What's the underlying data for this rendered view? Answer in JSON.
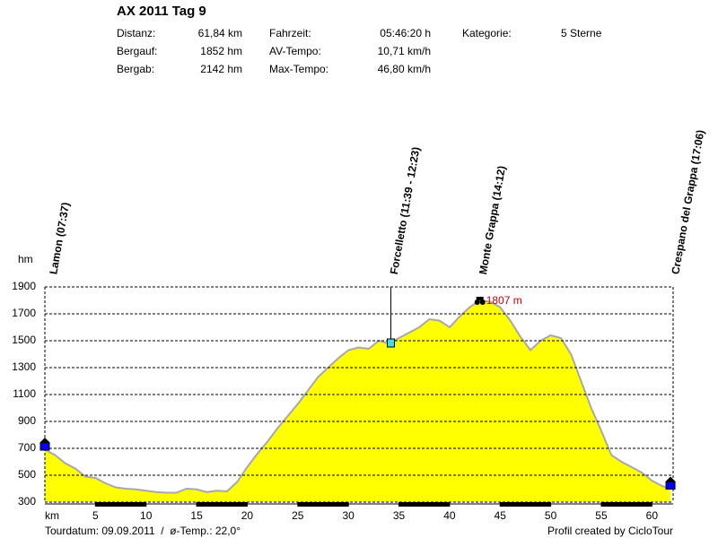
{
  "header": {
    "title": "AX 2011 Tag 9",
    "stats": [
      [
        {
          "label": "Distanz:",
          "value": "61,84 km"
        },
        {
          "label": "Fahrzeit:",
          "value": "05:46:20 h"
        },
        {
          "label": "Kategorie:",
          "value": "5 Sterne"
        }
      ],
      [
        {
          "label": "Bergauf:",
          "value": "1852 hm"
        },
        {
          "label": "AV-Tempo:",
          "value": "10,71 km/h"
        }
      ],
      [
        {
          "label": "Bergab:",
          "value": "2142 hm"
        },
        {
          "label": "Max-Tempo:",
          "value": "46,80 km/h"
        }
      ]
    ]
  },
  "chart_data": {
    "type": "area",
    "x_label": "km",
    "y_label": "hm",
    "color": "#ffff00",
    "line_color": "#a8a8a8",
    "grid": true,
    "x": [
      0,
      1,
      2,
      3,
      4,
      5,
      6,
      7,
      8,
      9,
      10,
      11,
      12,
      13,
      14,
      15,
      16,
      17,
      18,
      19,
      20,
      21,
      22,
      23,
      24,
      25,
      26,
      27,
      28,
      29,
      30,
      31,
      32,
      33,
      34,
      35,
      36,
      37,
      38,
      39,
      40,
      41,
      42,
      43,
      44,
      45,
      46,
      47,
      48,
      49,
      50,
      51,
      52,
      53,
      54,
      55,
      56,
      57,
      58,
      59,
      60,
      61,
      61.84
    ],
    "values": [
      690,
      650,
      590,
      550,
      490,
      480,
      440,
      410,
      400,
      395,
      385,
      375,
      370,
      370,
      400,
      395,
      375,
      385,
      380,
      450,
      560,
      660,
      750,
      850,
      940,
      1030,
      1130,
      1230,
      1300,
      1370,
      1430,
      1450,
      1440,
      1500,
      1480,
      1520,
      1560,
      1600,
      1660,
      1650,
      1600,
      1680,
      1750,
      1800,
      1790,
      1750,
      1650,
      1530,
      1430,
      1500,
      1540,
      1520,
      1400,
      1200,
      1000,
      830,
      650,
      600,
      560,
      520,
      460,
      420,
      400
    ],
    "xlim": [
      0,
      62.1
    ],
    "ylim": [
      300,
      1900
    ],
    "xticks": [
      5,
      10,
      15,
      20,
      25,
      30,
      35,
      40,
      45,
      50,
      55,
      60
    ],
    "yticks": [
      300,
      500,
      700,
      900,
      1100,
      1300,
      1500,
      1700,
      1900
    ],
    "waypoints": [
      {
        "label": "Lamon (07:37)",
        "x": 0,
        "y": 720,
        "icon": "house"
      },
      {
        "label": "Forcelletto (11:39 - 12:23)",
        "x": 34.2,
        "y": 1480,
        "icon": "flag"
      },
      {
        "label": "Monte Grappa (14:12)",
        "x": 43,
        "y": 1807,
        "icon": "summit",
        "value_label": "1807 m"
      },
      {
        "label": "Crespano del Grappa (17:06)",
        "x": 61.84,
        "y": 430,
        "icon": "house"
      }
    ]
  },
  "footer": {
    "left": "Tourdatum: 09.09.2011  /  ø-Temp.: 22,0°",
    "right": "Profil created by CicloTour"
  }
}
